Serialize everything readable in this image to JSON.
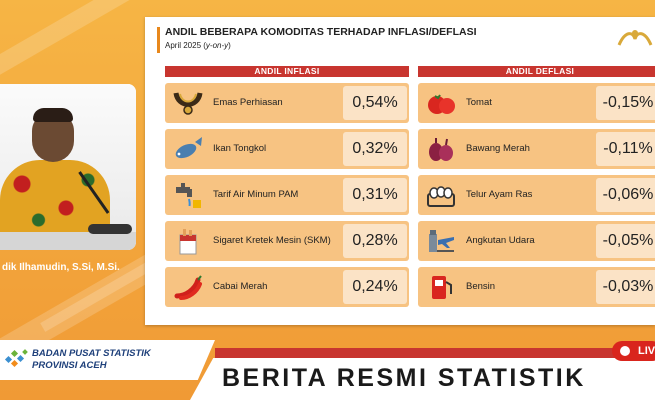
{
  "slide": {
    "title": "ANDIL BEBERAPA KOMODITAS TERHADAP INFLASI/DEFLASI",
    "subtitle_prefix": "April 2025 (",
    "subtitle_italic": "y-on-y",
    "subtitle_suffix": ")",
    "inflation": {
      "header": "ANDIL INFLASI",
      "items": [
        {
          "name": "Emas Perhiasan",
          "value": "0,54%",
          "icon": "gold-necklace-icon"
        },
        {
          "name": "Ikan Tongkol",
          "value": "0,32%",
          "icon": "fish-icon"
        },
        {
          "name": "Tarif Air Minum PAM",
          "value": "0,31%",
          "icon": "water-tap-icon"
        },
        {
          "name": "Sigaret Kretek Mesin (SKM)",
          "value": "0,28%",
          "icon": "cigarette-icon"
        },
        {
          "name": "Cabai Merah",
          "value": "0,24%",
          "icon": "chili-icon"
        }
      ]
    },
    "deflation": {
      "header": "ANDIL DEFLASI",
      "items": [
        {
          "name": "Tomat",
          "value": "-0,15%",
          "icon": "tomato-icon"
        },
        {
          "name": "Bawang Merah",
          "value": "-0,11%",
          "icon": "shallot-icon"
        },
        {
          "name": "Telur Ayam Ras",
          "value": "-0,06%",
          "icon": "eggs-icon"
        },
        {
          "name": "Angkutan Udara",
          "value": "-0,05%",
          "icon": "airplane-icon"
        },
        {
          "name": "Bensin",
          "value": "-0,03%",
          "icon": "fuel-pump-icon"
        }
      ]
    }
  },
  "speaker": {
    "name": "dik Ilhamudin, S.Si, M.Si."
  },
  "footer": {
    "org_line1": "BADAN PUSAT STATISTIK",
    "org_line2": "PROVINSI ACEH",
    "program_title": "BERITA RESMI STATISTIK",
    "live_label": "LIV"
  },
  "colors": {
    "background": "#f3a63c",
    "header_red": "#c8352f",
    "row_fill": "#f7c382",
    "value_fill": "#fbe3c6"
  }
}
